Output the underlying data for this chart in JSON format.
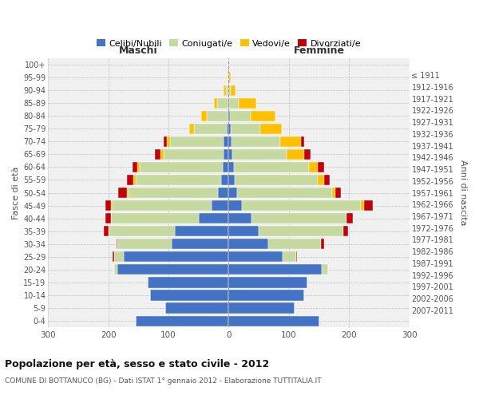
{
  "age_groups": [
    "0-4",
    "5-9",
    "10-14",
    "15-19",
    "20-24",
    "25-29",
    "30-34",
    "35-39",
    "40-44",
    "45-49",
    "50-54",
    "55-59",
    "60-64",
    "65-69",
    "70-74",
    "75-79",
    "80-84",
    "85-89",
    "90-94",
    "95-99",
    "100+"
  ],
  "birth_years": [
    "2007-2011",
    "2002-2006",
    "1997-2001",
    "1992-1996",
    "1987-1991",
    "1982-1986",
    "1977-1981",
    "1972-1976",
    "1967-1971",
    "1962-1966",
    "1957-1961",
    "1952-1956",
    "1947-1951",
    "1942-1946",
    "1937-1941",
    "1932-1936",
    "1927-1931",
    "1922-1926",
    "1917-1921",
    "1912-1916",
    "≤ 1911"
  ],
  "maschi": {
    "celibi": [
      155,
      105,
      130,
      135,
      185,
      175,
      95,
      90,
      50,
      28,
      18,
      13,
      10,
      8,
      8,
      3,
      1,
      1,
      0,
      0,
      0
    ],
    "coniugati": [
      0,
      0,
      0,
      0,
      5,
      15,
      90,
      110,
      145,
      165,
      148,
      142,
      138,
      100,
      90,
      55,
      35,
      18,
      5,
      1,
      0
    ],
    "vedovi": [
      0,
      0,
      0,
      0,
      0,
      0,
      0,
      0,
      0,
      2,
      3,
      4,
      4,
      5,
      5,
      8,
      10,
      6,
      3,
      1,
      0
    ],
    "divorziati": [
      0,
      0,
      0,
      0,
      0,
      3,
      2,
      8,
      10,
      10,
      15,
      10,
      8,
      10,
      5,
      0,
      0,
      0,
      0,
      0,
      0
    ]
  },
  "femmine": {
    "nubili": [
      150,
      110,
      125,
      130,
      155,
      90,
      65,
      50,
      38,
      22,
      14,
      10,
      8,
      6,
      5,
      3,
      2,
      1,
      0,
      0,
      0
    ],
    "coniugate": [
      0,
      0,
      0,
      0,
      10,
      22,
      88,
      140,
      158,
      198,
      158,
      138,
      125,
      90,
      80,
      50,
      35,
      15,
      3,
      1,
      0
    ],
    "vedove": [
      0,
      0,
      0,
      0,
      0,
      0,
      0,
      0,
      0,
      5,
      5,
      10,
      15,
      30,
      35,
      35,
      40,
      30,
      8,
      2,
      0
    ],
    "divorziate": [
      0,
      0,
      0,
      0,
      0,
      2,
      5,
      8,
      10,
      15,
      10,
      10,
      10,
      10,
      5,
      0,
      0,
      0,
      0,
      0,
      0
    ]
  },
  "colors": {
    "celibi": "#4472c4",
    "coniugati": "#c5d9a0",
    "vedovi": "#ffc000",
    "divorziati": "#c0000b"
  },
  "xlim": 300,
  "title": "Popolazione per età, sesso e stato civile - 2012",
  "subtitle": "COMUNE DI BOTTANUCO (BG) - Dati ISTAT 1° gennaio 2012 - Elaborazione TUTTITALIA.IT",
  "ylabel_left": "Fasce di età",
  "ylabel_right": "Anni di nascita",
  "xlabel_left": "Maschi",
  "xlabel_right": "Femmine",
  "background_color": "#ffffff",
  "plot_bg_color": "#f0f0f0",
  "grid_color": "#cccccc",
  "legend_labels": [
    "Celibi/Nubili",
    "Coniugati/e",
    "Vedovi/e",
    "Divorziati/e"
  ]
}
